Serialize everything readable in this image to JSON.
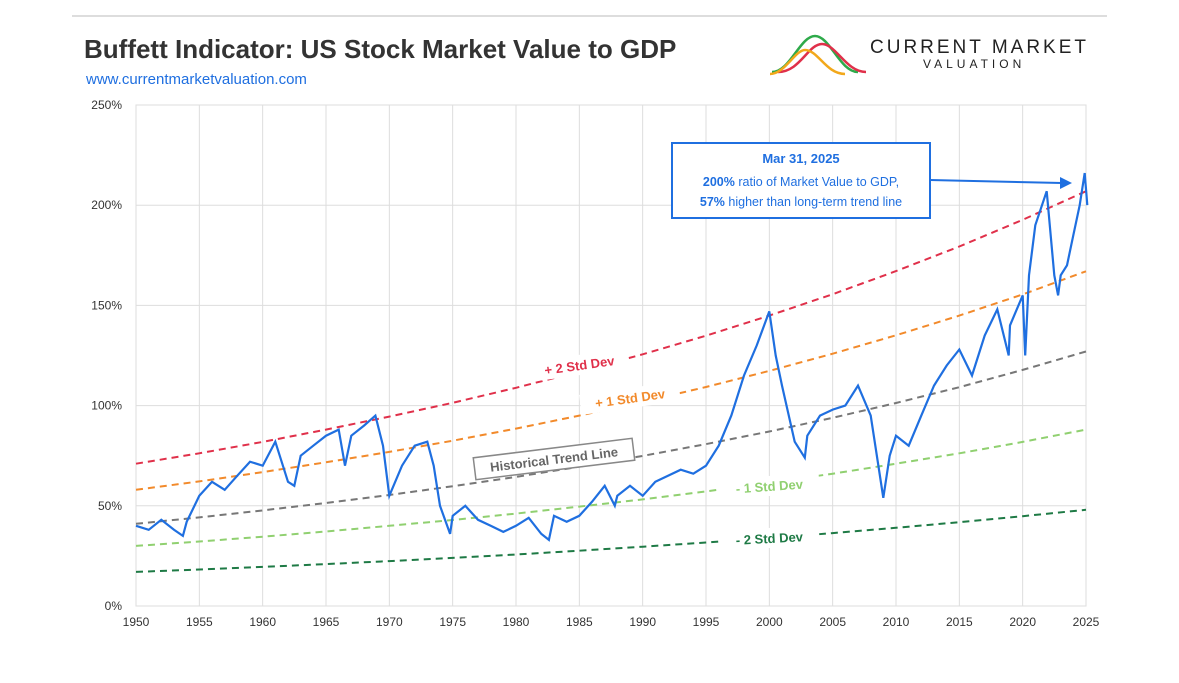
{
  "header": {
    "title": "Buffett Indicator: US Stock Market Value to GDP",
    "url": "www.currentmarketvaluation.com",
    "logo_line1": "CURRENT MARKET",
    "logo_line2": "VALUATION"
  },
  "chart_data": {
    "type": "line",
    "xlim": [
      1950,
      2025
    ],
    "xticks": [
      1950,
      1955,
      1960,
      1965,
      1970,
      1975,
      1980,
      1985,
      1990,
      1995,
      2000,
      2005,
      2010,
      2015,
      2020,
      2025
    ],
    "ylim": [
      0,
      250
    ],
    "yticks": [
      {
        "value": 0,
        "label": "0%"
      },
      {
        "value": 50,
        "label": "50%"
      },
      {
        "value": 100,
        "label": "100%"
      },
      {
        "value": 150,
        "label": "150%"
      },
      {
        "value": 200,
        "label": "200%"
      },
      {
        "value": 250,
        "label": "250%"
      }
    ],
    "grid": true,
    "annotation": {
      "date": "Mar 31, 2025",
      "line1_value": "200%",
      "line1_text": " ratio of Market Value to GDP,",
      "line2_value": "57%",
      "line2_text": " higher than long-term trend line"
    },
    "series": [
      {
        "name": "+ 2 Std Dev",
        "color": "#e0304a",
        "dashed": true,
        "x": [
          1950,
          1955,
          1960,
          1965,
          1970,
          1975,
          1980,
          1985,
          1990,
          1995,
          2000,
          2005,
          2010,
          2015,
          2020,
          2025
        ],
        "values": [
          71,
          76.2,
          81.9,
          88.0,
          94.5,
          101.4,
          108.9,
          117.0,
          125.6,
          134.9,
          144.9,
          155.6,
          167.1,
          179.4,
          192.7,
          207
        ]
      },
      {
        "name": "+ 1 Std Dev",
        "color": "#f28a2b",
        "dashed": true,
        "x": [
          1950,
          1955,
          1960,
          1965,
          1970,
          1975,
          1980,
          1985,
          1990,
          1995,
          2000,
          2005,
          2010,
          2015,
          2020,
          2025
        ],
        "values": [
          58,
          62.2,
          66.8,
          71.7,
          76.9,
          82.5,
          88.5,
          95.0,
          101.9,
          109.3,
          117.3,
          125.9,
          135.1,
          144.9,
          155.5,
          167
        ]
      },
      {
        "name": "Historical Trend Line",
        "color": "#777777",
        "dashed": true,
        "x": [
          1950,
          1955,
          1960,
          1965,
          1970,
          1975,
          1980,
          1985,
          1990,
          1995,
          2000,
          2005,
          2010,
          2015,
          2020,
          2025
        ],
        "values": [
          41,
          44.2,
          47.7,
          51.4,
          55.4,
          59.8,
          64.4,
          69.5,
          74.9,
          80.8,
          87.1,
          93.9,
          101.3,
          109.2,
          117.8,
          127
        ]
      },
      {
        "name": "- 1 Std Dev",
        "color": "#90d070",
        "dashed": true,
        "x": [
          1950,
          1955,
          1960,
          1965,
          1970,
          1975,
          1980,
          1985,
          1990,
          1995,
          2000,
          2005,
          2010,
          2015,
          2020,
          2025
        ],
        "values": [
          30,
          32.2,
          34.6,
          37.2,
          40.0,
          42.9,
          46.1,
          49.6,
          53.2,
          57.2,
          61.5,
          66.0,
          71.0,
          76.2,
          81.9,
          88
        ]
      },
      {
        "name": "- 2 Std Dev",
        "color": "#1e7a45",
        "dashed": true,
        "x": [
          1950,
          1955,
          1960,
          1965,
          1970,
          1975,
          1980,
          1985,
          1990,
          1995,
          2000,
          2005,
          2010,
          2015,
          2020,
          2025
        ],
        "values": [
          17,
          18.2,
          19.5,
          20.9,
          22.4,
          24.0,
          25.7,
          27.6,
          29.6,
          31.7,
          33.9,
          36.4,
          39.0,
          41.8,
          44.8,
          48
        ]
      },
      {
        "color": "#1f6fe0",
        "dashed": false,
        "x": [
          1950,
          1951,
          1952,
          1953,
          1953.7,
          1954,
          1955,
          1956,
          1957,
          1958,
          1959,
          1960,
          1961,
          1962,
          1962.5,
          1963,
          1964,
          1965,
          1966,
          1966.5,
          1967,
          1968,
          1968.9,
          1969.5,
          1970,
          1971,
          1972,
          1973,
          1973.5,
          1974,
          1974.8,
          1975,
          1976,
          1977,
          1978,
          1979,
          1980,
          1981,
          1982,
          1982.6,
          1983,
          1984,
          1985,
          1986,
          1987,
          1987.8,
          1988,
          1989,
          1990,
          1991,
          1992,
          1993,
          1994,
          1995,
          1996,
          1997,
          1998,
          1999,
          2000,
          2000.5,
          2001,
          2002,
          2002.8,
          2003,
          2004,
          2005,
          2006,
          2007,
          2008,
          2009,
          2009.5,
          2010,
          2011,
          2012,
          2013,
          2014,
          2015,
          2016,
          2017,
          2018,
          2018.9,
          2019,
          2020,
          2020.2,
          2020.5,
          2021,
          2021.9,
          2022.5,
          2022.8,
          2023,
          2023.5,
          2024,
          2024.5,
          2024.9,
          2025.1
        ],
        "values": [
          40,
          38,
          43,
          38,
          35,
          42,
          55,
          62,
          58,
          65,
          72,
          70,
          82,
          62,
          60,
          75,
          80,
          85,
          88,
          70,
          85,
          90,
          95,
          80,
          55,
          70,
          80,
          82,
          70,
          50,
          36,
          45,
          50,
          43,
          40,
          37,
          40,
          44,
          36,
          33,
          45,
          42,
          45,
          52,
          60,
          50,
          55,
          60,
          55,
          62,
          65,
          68,
          66,
          70,
          80,
          95,
          115,
          130,
          147,
          125,
          110,
          82,
          74,
          85,
          95,
          98,
          100,
          110,
          95,
          54,
          75,
          85,
          80,
          95,
          110,
          120,
          128,
          115,
          135,
          148,
          125,
          140,
          155,
          125,
          165,
          190,
          207,
          165,
          155,
          165,
          170,
          185,
          200,
          216,
          200
        ]
      }
    ]
  }
}
